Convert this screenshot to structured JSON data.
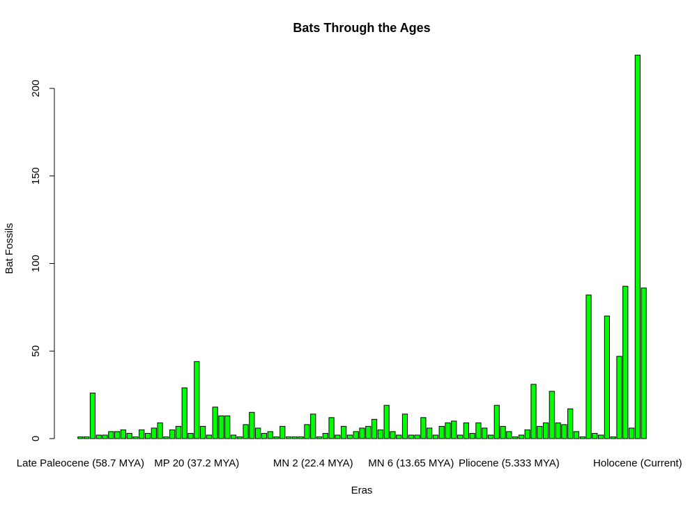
{
  "chart_data": {
    "type": "bar",
    "title": "Bats Through the Ages",
    "xlabel": "Eras",
    "ylabel": "Bat Fossils",
    "ylim": [
      0,
      220
    ],
    "yticks": [
      0,
      50,
      100,
      150,
      200
    ],
    "bar_color": "#00ff00",
    "x_tick_labels": [
      {
        "label": "Late Paleocene (58.7 MYA)",
        "bar_index": 0
      },
      {
        "label": "MP 20 (37.2 MYA)",
        "bar_index": 19
      },
      {
        "label": "MN 2 (22.4 MYA)",
        "bar_index": 38
      },
      {
        "label": "MN 6 (13.65 MYA)",
        "bar_index": 54
      },
      {
        "label": "Pliocene (5.333 MYA)",
        "bar_index": 70
      },
      {
        "label": "Holocene (Current)",
        "bar_index": 91
      }
    ],
    "values": [
      1,
      1,
      26,
      2,
      2,
      4,
      4,
      5,
      3,
      1,
      5,
      3,
      6,
      9,
      1,
      5,
      7,
      29,
      3,
      44,
      7,
      2,
      18,
      13,
      13,
      2,
      1,
      8,
      15,
      6,
      3,
      4,
      1,
      7,
      1,
      1,
      1,
      8,
      14,
      1,
      3,
      12,
      2,
      7,
      2,
      4,
      6,
      7,
      11,
      5,
      19,
      4,
      2,
      14,
      2,
      2,
      12,
      6,
      2,
      7,
      9,
      10,
      2,
      9,
      3,
      9,
      6,
      2,
      19,
      7,
      4,
      1,
      2,
      5,
      31,
      7,
      9,
      27,
      9,
      8,
      17,
      4,
      1,
      82,
      3,
      2,
      70,
      1,
      47,
      87,
      6,
      219,
      86
    ]
  }
}
